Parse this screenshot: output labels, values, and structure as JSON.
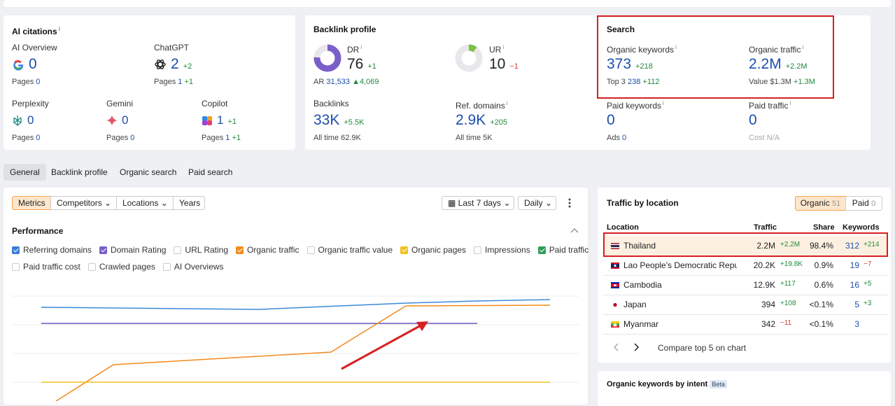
{
  "info_icon": "i",
  "ai_citations": {
    "title": "AI citations",
    "items": [
      {
        "label": "AI Overview",
        "value": "0",
        "pages_label": "Pages",
        "pages": "0"
      },
      {
        "label": "ChatGPT",
        "value": "2",
        "change": "+2",
        "pages_label": "Pages",
        "pages": "1",
        "pages_change": "+1"
      },
      {
        "label": "Perplexity",
        "value": "0",
        "pages_label": "Pages",
        "pages": "0"
      },
      {
        "label": "Gemini",
        "value": "0",
        "pages_label": "Pages",
        "pages": "0"
      },
      {
        "label": "Copilot",
        "value": "1",
        "change": "+1",
        "pages_label": "Pages",
        "pages": "1",
        "pages_change": "+1"
      }
    ]
  },
  "backlink_profile": {
    "title": "Backlink profile",
    "dr": {
      "label": "DR",
      "value": "76",
      "change": "+1",
      "ar_label": "AR",
      "ar": "31,533",
      "ar_change": "4,069"
    },
    "ur": {
      "label": "UR",
      "value": "10",
      "change": "−1"
    },
    "backlinks": {
      "label": "Backlinks",
      "value": "33K",
      "change": "+5.5K",
      "sub_label": "All time",
      "sub": "62.9K"
    },
    "ref_domains": {
      "label": "Ref. domains",
      "value": "2.9K",
      "change": "+205",
      "sub_label": "All time",
      "sub": "5K"
    }
  },
  "search": {
    "title": "Search",
    "organic_keywords": {
      "label": "Organic keywords",
      "value": "373",
      "change": "+218",
      "sub_label": "Top 3",
      "sub": "238",
      "sub_change": "+112"
    },
    "organic_traffic": {
      "label": "Organic traffic",
      "value": "2.2M",
      "change": "+2.2M",
      "sub_label": "Value",
      "sub": "$1.3M",
      "sub_change": "+1.3M"
    },
    "paid_keywords": {
      "label": "Paid keywords",
      "value": "0",
      "sub_label": "Ads",
      "sub": "0"
    },
    "paid_traffic": {
      "label": "Paid traffic",
      "value": "0",
      "sub_label": "Cost",
      "sub": "N/A"
    }
  },
  "tabs": [
    "General",
    "Backlink profile",
    "Organic search",
    "Paid search"
  ],
  "toolbar": {
    "buttons": [
      "Metrics",
      "Competitors",
      "Locations",
      "Years"
    ],
    "date_range": "Last 7 days",
    "interval": "Daily"
  },
  "performance": {
    "title": "Performance",
    "metrics": [
      {
        "label": "Referring domains",
        "checked": true,
        "color": "#3b7dd8"
      },
      {
        "label": "Domain Rating",
        "checked": true,
        "color": "#7a5fc8"
      },
      {
        "label": "URL Rating",
        "checked": false,
        "color": "#cccccc"
      },
      {
        "label": "Organic traffic",
        "checked": true,
        "color": "#f28a1c"
      },
      {
        "label": "Organic traffic value",
        "checked": false,
        "color": "#cccccc"
      },
      {
        "label": "Organic pages",
        "checked": true,
        "color": "#f2c21c"
      },
      {
        "label": "Impressions",
        "checked": false,
        "color": "#cccccc"
      },
      {
        "label": "Paid traffic",
        "checked": true,
        "color": "#2f9e5a"
      },
      {
        "label": "Paid traffic cost",
        "checked": false,
        "color": "#cccccc"
      },
      {
        "label": "Crawled pages",
        "checked": false,
        "color": "#cccccc"
      },
      {
        "label": "AI Overviews",
        "checked": false,
        "color": "#cccccc"
      }
    ]
  },
  "traffic_by_location": {
    "title": "Traffic by location",
    "toggle": [
      {
        "label": "Organic",
        "count": "51"
      },
      {
        "label": "Paid",
        "count": "0"
      }
    ],
    "columns": [
      "Location",
      "Traffic",
      "Share",
      "Keywords"
    ],
    "rows": [
      {
        "location": "Thailand",
        "traffic": "2.2M",
        "traffic_change": "+2.2M",
        "share": "98.4%",
        "keywords": "312",
        "keywords_change": "+214"
      },
      {
        "location": "Lao People's Democratic Republic",
        "traffic": "20.2K",
        "traffic_change": "+19.8K",
        "share": "0.9%",
        "keywords": "19",
        "keywords_change": "−7"
      },
      {
        "location": "Cambodia",
        "traffic": "12.9K",
        "traffic_change": "+117",
        "share": "0.6%",
        "keywords": "16",
        "keywords_change": "+5"
      },
      {
        "location": "Japan",
        "traffic": "394",
        "traffic_change": "+108",
        "share": "<0.1%",
        "keywords": "5",
        "keywords_change": "+3"
      },
      {
        "location": "Myanmar",
        "traffic": "342",
        "traffic_change": "−11",
        "share": "<0.1%",
        "keywords": "3"
      }
    ],
    "compare": "Compare top 5 on chart"
  },
  "keywords_by_intent": {
    "title": "Organic keywords by intent",
    "badge": "Beta"
  }
}
